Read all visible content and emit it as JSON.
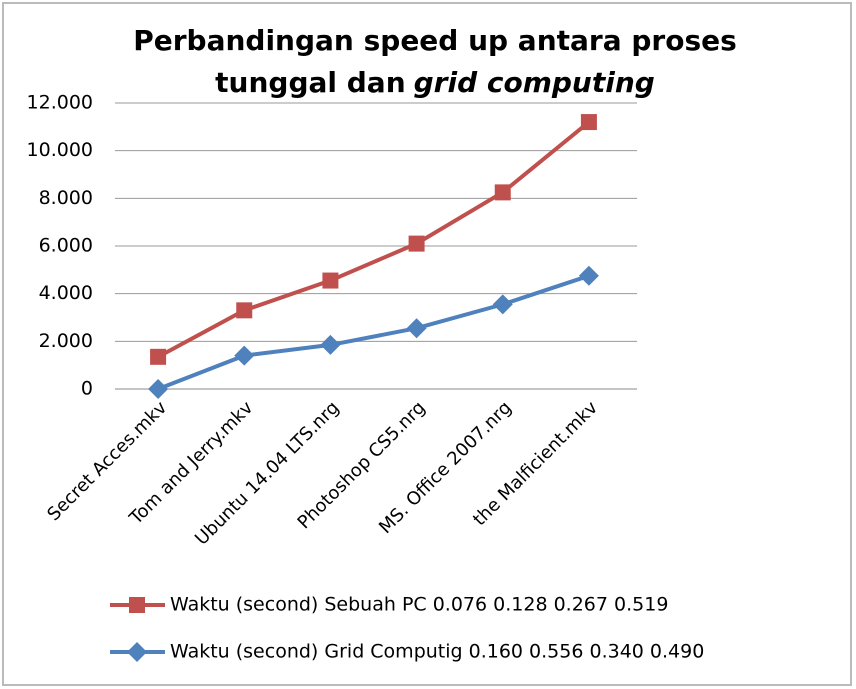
{
  "chart_data": {
    "type": "line",
    "title": {
      "line1": "Perbandingan speed up antara proses",
      "line2": "tunggal dan",
      "line2_italic": "grid computing"
    },
    "categories": [
      "Secret Acces.mkv",
      "Tom and Jerry.mkv",
      "Ubuntu 14.04 LTS.nrg",
      "Photoshop CS5.nrg",
      "MS. Office 2007.nrg",
      "the Malficient.mkv"
    ],
    "series": [
      {
        "name": "Waktu (second) Sebuah PC 0.076 0.128 0.267 0.519",
        "color": "#c0504d",
        "marker": "square",
        "values": [
          1.35,
          3.3,
          4.55,
          6.1,
          8.25,
          11.2
        ]
      },
      {
        "name": "Waktu (second) Grid Computig 0.160 0.556 0.340 0.490",
        "color": "#4f81bd",
        "marker": "diamond",
        "values": [
          0,
          1.4,
          1.85,
          2.55,
          3.55,
          4.75
        ]
      }
    ],
    "ylim": [
      0,
      12
    ],
    "yticks": [
      0,
      {
        "value": 2,
        "label": "2.000"
      },
      {
        "value": 4,
        "label": "4.000"
      },
      {
        "value": 6,
        "label": "6.000"
      },
      {
        "value": 8,
        "label": "8.000"
      },
      {
        "value": 10,
        "label": "10.000"
      },
      {
        "value": 12,
        "label": "12.000"
      }
    ],
    "grid": true
  }
}
